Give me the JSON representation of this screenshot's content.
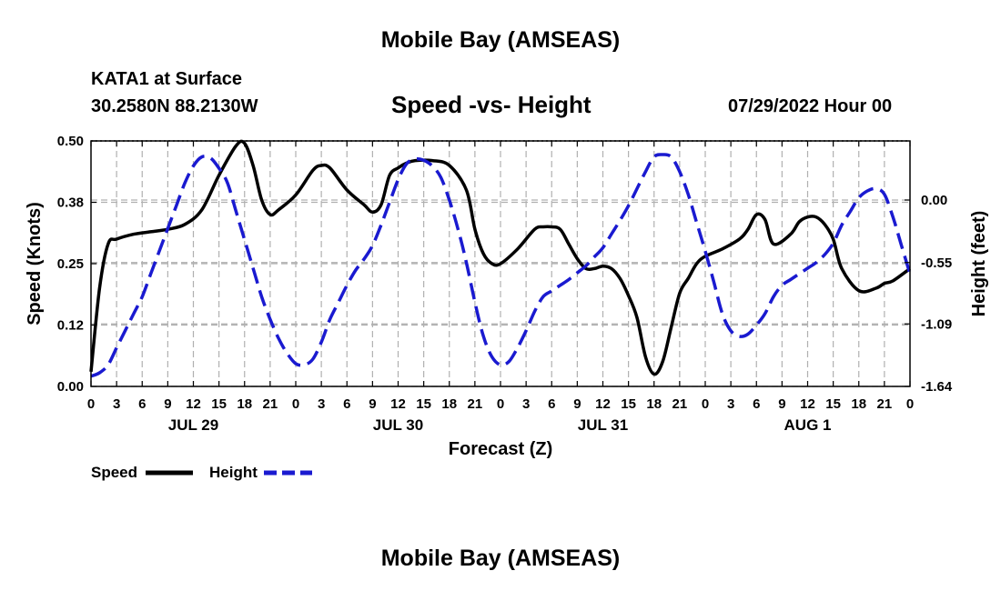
{
  "page": {
    "title": "Mobile Bay (AMSEAS)",
    "station": "KATA1 at Surface",
    "location": "30.2580N  88.2130W",
    "datetime": "07/29/2022 Hour 00",
    "bottom_title": "Mobile Bay (AMSEAS)"
  },
  "chart_data": {
    "type": "line",
    "title": "Speed -vs- Height",
    "xlabel": "Forecast (Z)",
    "ylabel_left": "Speed (Knots)",
    "ylabel_right": "Height (feet)",
    "x_unit": "hours since 07/29/2022 00Z",
    "xlim": [
      0,
      96
    ],
    "x_tick_labels": [
      "0",
      "3",
      "6",
      "9",
      "12",
      "15",
      "18",
      "21",
      "0",
      "3",
      "6",
      "9",
      "12",
      "15",
      "18",
      "21",
      "0",
      "3",
      "6",
      "9",
      "12",
      "15",
      "18",
      "21",
      "0",
      "3",
      "6",
      "9",
      "12",
      "15",
      "18",
      "21",
      "0"
    ],
    "date_labels": [
      {
        "label": "JUL 29",
        "x": 12
      },
      {
        "label": "JUL 30",
        "x": 36
      },
      {
        "label": "JUL 31",
        "x": 60
      },
      {
        "label": "AUG 1",
        "x": 84
      }
    ],
    "ylim_left": [
      0,
      0.5
    ],
    "yticks_left": [
      "0.00",
      "0.12",
      "0.25",
      "0.38",
      "0.50"
    ],
    "ylim_right": [
      -1.64,
      0.52
    ],
    "yticks_right": [
      "-1.64",
      "-1.09",
      "-0.55",
      "0.00"
    ],
    "grid": true,
    "legend": "bottom-left",
    "colors": {
      "speed": "#000000",
      "height": "#1a1ad0"
    },
    "series": [
      {
        "name": "Speed",
        "axis": "left",
        "style": "solid",
        "x": [
          0,
          1,
          2,
          3,
          5,
          7,
          9,
          11,
          13,
          15,
          17,
          18,
          19,
          20,
          21,
          22,
          24,
          26,
          27,
          28,
          30,
          32,
          33,
          34,
          35,
          36,
          37,
          38,
          40,
          42,
          44,
          45,
          46,
          47,
          48,
          50,
          52,
          53,
          54,
          55,
          56,
          57,
          58,
          59,
          60,
          61,
          62,
          63,
          64,
          65,
          66,
          67,
          68,
          69,
          70,
          71,
          72,
          74,
          76,
          77,
          78,
          79,
          80,
          82,
          83,
          84,
          85,
          86,
          87,
          88,
          90,
          92,
          93,
          94,
          96
        ],
        "y": [
          0.03,
          0.2,
          0.29,
          0.3,
          0.31,
          0.315,
          0.32,
          0.33,
          0.36,
          0.43,
          0.49,
          0.495,
          0.45,
          0.38,
          0.35,
          0.36,
          0.39,
          0.44,
          0.45,
          0.445,
          0.4,
          0.37,
          0.355,
          0.37,
          0.43,
          0.445,
          0.455,
          0.46,
          0.46,
          0.45,
          0.4,
          0.32,
          0.27,
          0.25,
          0.25,
          0.28,
          0.32,
          0.325,
          0.325,
          0.32,
          0.29,
          0.26,
          0.24,
          0.24,
          0.245,
          0.24,
          0.22,
          0.185,
          0.14,
          0.06,
          0.025,
          0.05,
          0.12,
          0.19,
          0.22,
          0.25,
          0.265,
          0.28,
          0.3,
          0.32,
          0.35,
          0.34,
          0.29,
          0.31,
          0.335,
          0.345,
          0.345,
          0.33,
          0.3,
          0.24,
          0.195,
          0.2,
          0.21,
          0.215,
          0.24
        ]
      },
      {
        "name": "Height",
        "axis": "right",
        "style": "dashed",
        "x": [
          0,
          1,
          2,
          3,
          4,
          5,
          6,
          7,
          8,
          9,
          10,
          11,
          12,
          13,
          14,
          15,
          16,
          17,
          18,
          19,
          20,
          21,
          22,
          23,
          24,
          25,
          26,
          27,
          28,
          29,
          30,
          31,
          32,
          33,
          34,
          35,
          36,
          37,
          38,
          39,
          40,
          41,
          42,
          43,
          44,
          45,
          46,
          47,
          48,
          49,
          50,
          51,
          52,
          53,
          54,
          55,
          56,
          57,
          58,
          59,
          60,
          61,
          62,
          63,
          64,
          65,
          66,
          67,
          68,
          69,
          70,
          71,
          72,
          73,
          74,
          75,
          76,
          77,
          78,
          79,
          80,
          81,
          82,
          83,
          84,
          85,
          86,
          87,
          88,
          89,
          90,
          91,
          92,
          93,
          94,
          95,
          96
        ],
        "y": [
          -1.55,
          -1.52,
          -1.45,
          -1.3,
          -1.15,
          -1.0,
          -0.85,
          -0.65,
          -0.45,
          -0.25,
          -0.05,
          0.15,
          0.3,
          0.38,
          0.37,
          0.28,
          0.15,
          -0.1,
          -0.35,
          -0.6,
          -0.85,
          -1.05,
          -1.22,
          -1.35,
          -1.44,
          -1.45,
          -1.4,
          -1.25,
          -1.05,
          -0.9,
          -0.75,
          -0.62,
          -0.52,
          -0.4,
          -0.22,
          -0.02,
          0.18,
          0.32,
          0.36,
          0.35,
          0.3,
          0.2,
          0.0,
          -0.25,
          -0.55,
          -0.9,
          -1.2,
          -1.38,
          -1.45,
          -1.42,
          -1.3,
          -1.15,
          -0.98,
          -0.85,
          -0.8,
          -0.75,
          -0.7,
          -0.64,
          -0.58,
          -0.5,
          -0.42,
          -0.3,
          -0.18,
          -0.05,
          0.1,
          0.25,
          0.38,
          0.4,
          0.38,
          0.25,
          0.05,
          -0.2,
          -0.45,
          -0.72,
          -1.0,
          -1.15,
          -1.2,
          -1.18,
          -1.1,
          -1.0,
          -0.85,
          -0.75,
          -0.7,
          -0.65,
          -0.6,
          -0.55,
          -0.48,
          -0.38,
          -0.22,
          -0.1,
          0.02,
          0.08,
          0.1,
          0.05,
          -0.15,
          -0.4,
          -0.65
        ]
      }
    ]
  }
}
